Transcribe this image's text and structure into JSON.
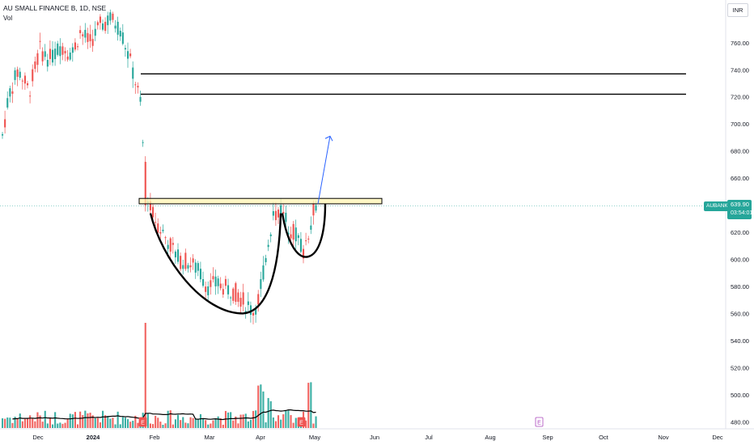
{
  "header": {
    "symbol_title": "AU SMALL FINANCE B, 1D, NSE",
    "volume_label": "Vol",
    "currency": "INR"
  },
  "price_tag": {
    "symbol": "AUBANK",
    "last_price": "639.90",
    "countdown": "03:54:01"
  },
  "colors": {
    "up": "#26a69a",
    "down": "#ef5350",
    "background": "#ffffff",
    "last_price_line": "#26a69a",
    "box_fill": "#fff3b0",
    "arrow": "#2962ff"
  },
  "chart_data": {
    "type": "candlestick",
    "y_axis": {
      "ticks": [
        760,
        740,
        720,
        700,
        680,
        660,
        620,
        600,
        580,
        560,
        540,
        520,
        500,
        480
      ],
      "ylim": [
        474,
        782
      ]
    },
    "x_axis": {
      "tick_labels": [
        "Dec",
        "2024",
        "Feb",
        "Mar",
        "Apr",
        "May",
        "Jun",
        "Jul",
        "Aug",
        "Sep",
        "Oct",
        "Nov",
        "Dec"
      ]
    },
    "candles_summary": {
      "pre_gap_high": 782,
      "pre_gap_low": 705,
      "gap_down_open": 670,
      "cup_low": 556,
      "handle_low": 601,
      "last_close": 639.9
    },
    "annotations": {
      "horizontal_lines": [
        737,
        722
      ],
      "resistance_zone": [
        641,
        645
      ],
      "cup_bottom": 560,
      "handle_bottom": 602,
      "target_arrow_end": 691
    },
    "volume_average_approx": [
      490,
      495
    ]
  }
}
